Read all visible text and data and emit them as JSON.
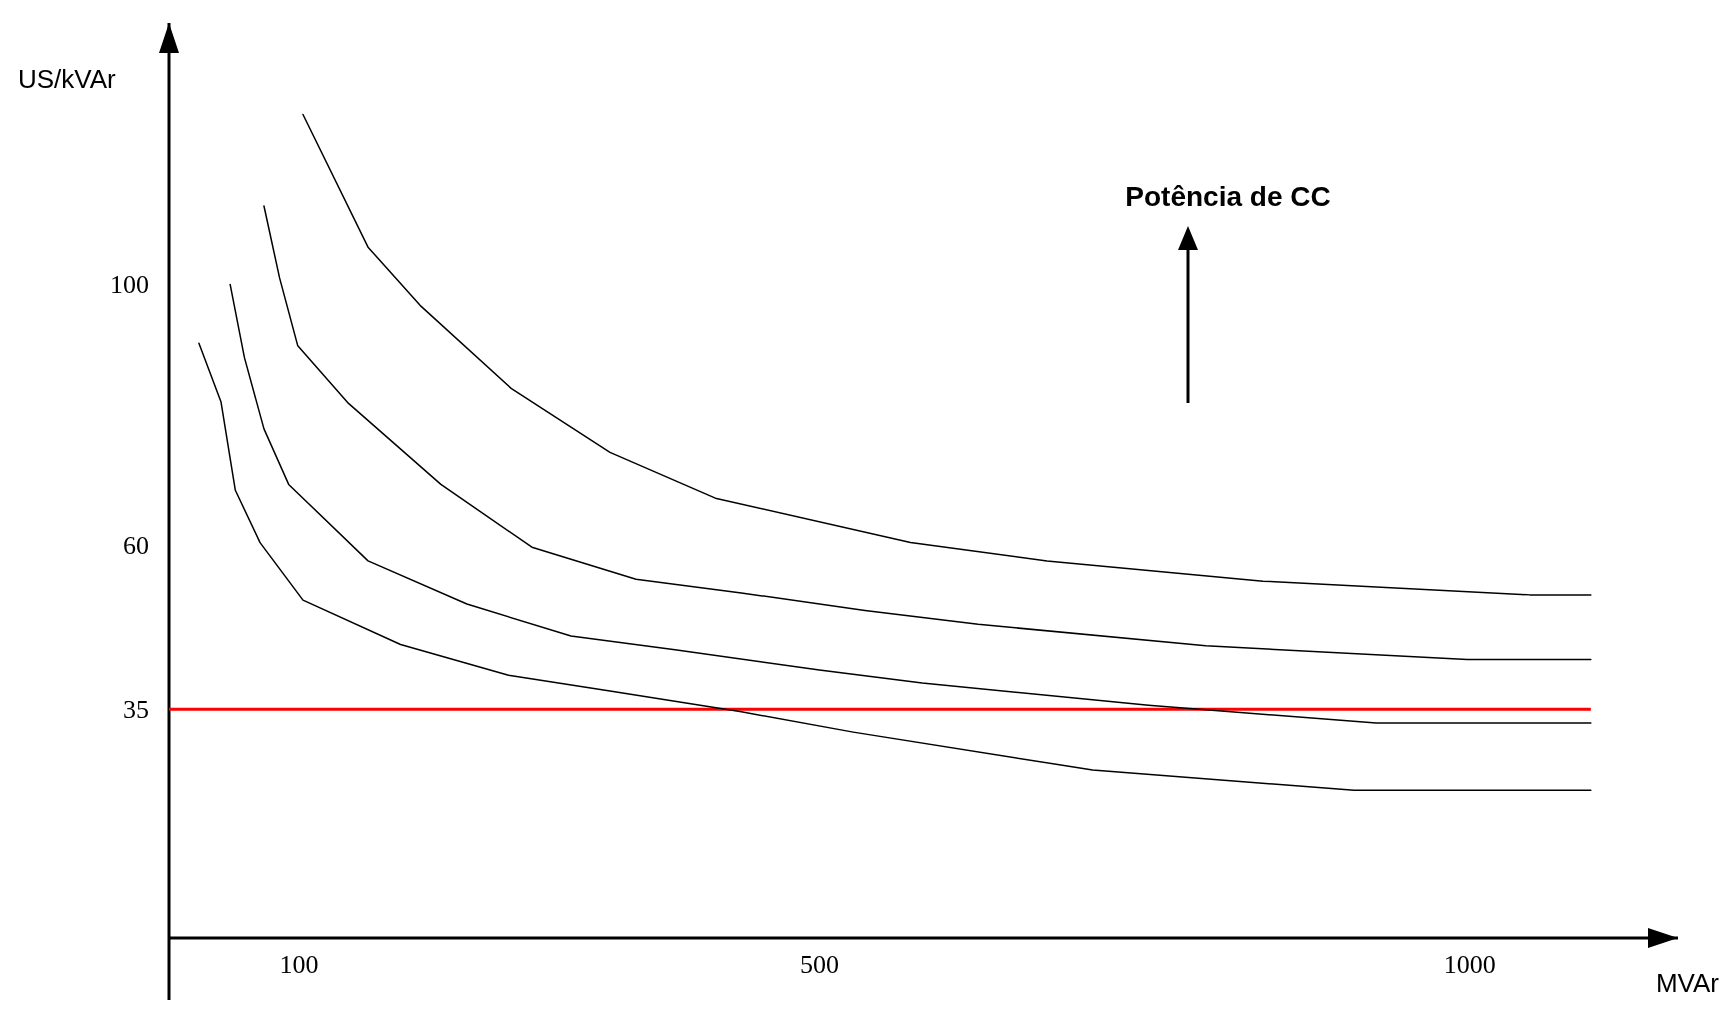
{
  "chart_data": {
    "type": "line",
    "xlabel": "MVAr",
    "ylabel": "US/kVAr",
    "annotations": [
      "Potência de CC"
    ],
    "xlim": [
      0,
      1160
    ],
    "xticks": [
      100,
      500,
      1000
    ],
    "ylim": [
      0,
      140
    ],
    "yticks": [
      35,
      60,
      100
    ],
    "line_style": "solid",
    "grid": false,
    "ref_lines": [
      {
        "axis": "y",
        "value": 35,
        "label": null,
        "color": "#ff0000"
      }
    ],
    "series": [
      {
        "color": "#000000",
        "x": [
          23,
          40,
          51,
          70,
          103,
          178,
          261,
          339,
          440,
          526,
          710,
          911,
          1093
        ],
        "values": [
          91,
          82,
          68.5,
          60.5,
          51.7,
          44.9,
          40.2,
          37.8,
          34.6,
          31.5,
          25.7,
          22.6,
          22.6
        ]
      },
      {
        "color": "#000000",
        "x": [
          47,
          58,
          73,
          92,
          153,
          229,
          309,
          389,
          500,
          579,
          753,
          928,
          1093
        ],
        "values": [
          100,
          88.8,
          77.9,
          69.4,
          57.7,
          51.1,
          46.2,
          44.1,
          41,
          39,
          35.6,
          32.9,
          32.9
        ]
      },
      {
        "color": "#000000",
        "x": [
          73,
          85,
          99,
          138,
          209,
          279,
          359,
          440,
          535,
          622,
          797,
          998,
          1093
        ],
        "values": [
          112,
          101,
          90.6,
          81.8,
          69.4,
          59.8,
          54.9,
          52.8,
          50.1,
          48,
          44.7,
          42.6,
          42.6
        ]
      },
      {
        "color": "#000000",
        "x": [
          103,
          153,
          193,
          263,
          339,
          420,
          570,
          675,
          841,
          1046,
          1093
        ],
        "values": [
          126,
          105.7,
          96.8,
          84.1,
          74.3,
          67.3,
          60.5,
          57.7,
          54.6,
          52.5,
          52.5
        ]
      }
    ]
  }
}
